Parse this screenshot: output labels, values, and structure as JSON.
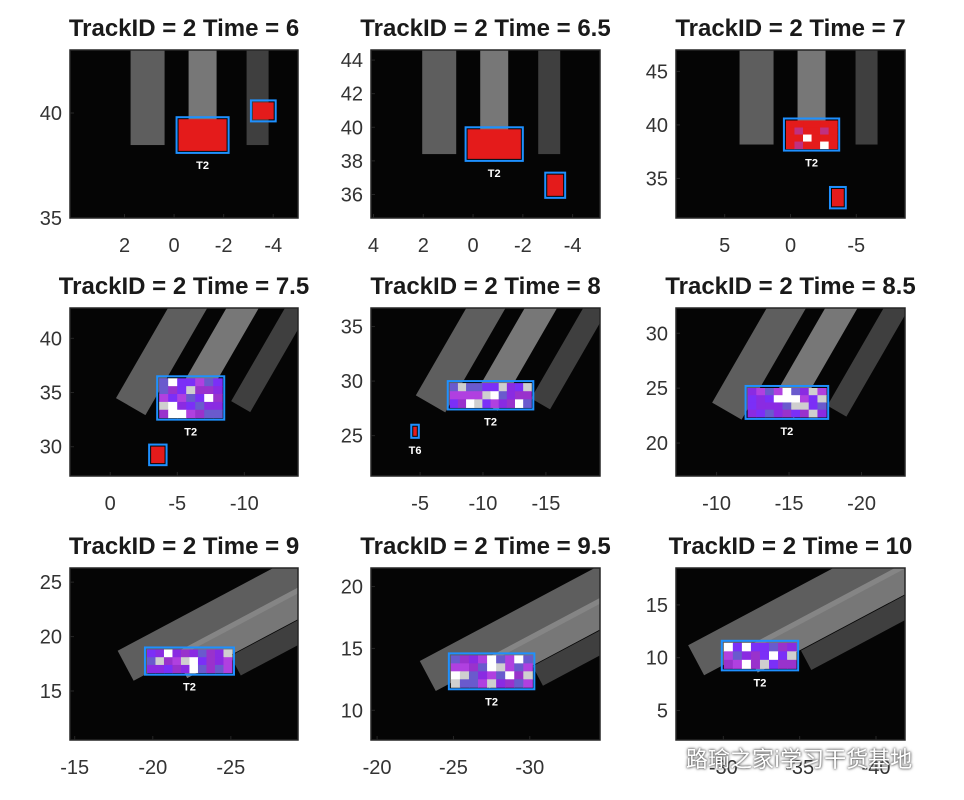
{
  "chart_data": [
    {
      "type": "heatmap",
      "title": "TrackID = 2 Time = 6",
      "xticks": [
        2,
        0,
        -2,
        -4
      ],
      "xlim": [
        4.2,
        -5.0
      ],
      "yticks": [
        35,
        40
      ],
      "ylim": [
        35,
        43
      ],
      "boxes": [
        {
          "label": "T2",
          "x": [
            -2.2,
            -0.1
          ],
          "y": [
            38.1,
            39.8
          ],
          "fill": "red"
        },
        {
          "label": "",
          "x": [
            -4.1,
            -3.1
          ],
          "y": [
            39.6,
            40.6
          ],
          "fill": "red"
        }
      ]
    },
    {
      "type": "heatmap",
      "title": "TrackID = 2 Time = 6.5",
      "xticks": [
        4,
        2,
        0,
        -2,
        -4
      ],
      "xlim": [
        4.1,
        -5.1
      ],
      "yticks": [
        36,
        38,
        40,
        42,
        44
      ],
      "ylim": [
        34.6,
        44.6
      ],
      "boxes": [
        {
          "label": "T2",
          "x": [
            -2.0,
            0.3
          ],
          "y": [
            38.0,
            40.0
          ],
          "fill": "red"
        },
        {
          "label": "",
          "x": [
            -3.7,
            -2.9
          ],
          "y": [
            35.8,
            37.3
          ],
          "fill": "red"
        }
      ]
    },
    {
      "type": "heatmap",
      "title": "TrackID = 2 Time = 7",
      "xticks": [
        5,
        0,
        -5
      ],
      "xlim": [
        8.7,
        -8.7
      ],
      "yticks": [
        35,
        40,
        45
      ],
      "ylim": [
        31.3,
        47
      ],
      "boxes": [
        {
          "label": "T2",
          "x": [
            -3.7,
            0.5
          ],
          "y": [
            37.6,
            40.6
          ],
          "fill": "mixed"
        },
        {
          "label": "",
          "x": [
            -4.2,
            -3.0
          ],
          "y": [
            32.2,
            34.2
          ],
          "fill": "red"
        }
      ]
    },
    {
      "type": "heatmap",
      "title": "TrackID = 2 Time = 7.5",
      "xticks": [
        0,
        -5,
        -10
      ],
      "xlim": [
        3,
        -14
      ],
      "yticks": [
        30,
        35,
        40
      ],
      "ylim": [
        27.3,
        42.8
      ],
      "boxes": [
        {
          "label": "T2",
          "x": [
            -8.5,
            -3.5
          ],
          "y": [
            32.5,
            36.5
          ],
          "fill": "mixed"
        },
        {
          "label": "",
          "x": [
            -4.2,
            -2.9
          ],
          "y": [
            28.3,
            30.2
          ],
          "fill": "red"
        }
      ]
    },
    {
      "type": "heatmap",
      "title": "TrackID = 2 Time = 8",
      "xticks": [
        -5,
        -10,
        -15
      ],
      "xlim": [
        -1.1,
        -19.3
      ],
      "yticks": [
        25,
        30,
        35
      ],
      "ylim": [
        21.3,
        36.7
      ],
      "boxes": [
        {
          "label": "T2",
          "x": [
            -14.0,
            -7.2
          ],
          "y": [
            27.4,
            30.0
          ],
          "fill": "mixed"
        },
        {
          "label": "T6",
          "x": [
            -4.9,
            -4.3
          ],
          "y": [
            24.8,
            26.0
          ],
          "fill": "red"
        }
      ]
    },
    {
      "type": "heatmap",
      "title": "TrackID = 2 Time = 8.5",
      "xticks": [
        -10,
        -15,
        -20
      ],
      "xlim": [
        -7.2,
        -23.0
      ],
      "yticks": [
        20,
        25,
        30
      ],
      "ylim": [
        17,
        32.3
      ],
      "boxes": [
        {
          "label": "T2",
          "x": [
            -17.7,
            -12.0
          ],
          "y": [
            22.2,
            25.2
          ],
          "fill": "mixed"
        }
      ]
    },
    {
      "type": "heatmap",
      "title": "TrackID = 2 Time = 9",
      "xticks": [
        -15,
        -20,
        -25
      ],
      "xlim": [
        -14.7,
        -29.3
      ],
      "yticks": [
        15,
        20,
        25
      ],
      "ylim": [
        10.5,
        26.3
      ],
      "boxes": [
        {
          "label": "T2",
          "x": [
            -25.2,
            -19.5
          ],
          "y": [
            16.5,
            19.0
          ],
          "fill": "mixed"
        }
      ]
    },
    {
      "type": "heatmap",
      "title": "TrackID = 2 Time = 9.5",
      "xticks": [
        -20,
        -25,
        -30
      ],
      "xlim": [
        -19.6,
        -34.6
      ],
      "yticks": [
        10,
        15,
        20
      ],
      "ylim": [
        7.6,
        21.5
      ],
      "boxes": [
        {
          "label": "T2",
          "x": [
            -30.3,
            -24.7
          ],
          "y": [
            11.7,
            14.6
          ],
          "fill": "mixed"
        }
      ]
    },
    {
      "type": "heatmap",
      "title": "TrackID = 2 Time = 10",
      "xticks": [
        -30,
        -35,
        -40
      ],
      "xlim": [
        -26.9,
        -41.9
      ],
      "yticks": [
        5,
        10,
        15
      ],
      "ylim": [
        2.2,
        18.5
      ],
      "boxes": [
        {
          "label": "T2",
          "x": [
            -34.9,
            -29.9
          ],
          "y": [
            8.8,
            11.6
          ],
          "fill": "mixed"
        }
      ]
    }
  ],
  "watermark": {
    "text": "路瑜之家i学习干货基地",
    "icon": "wechat-icon"
  }
}
